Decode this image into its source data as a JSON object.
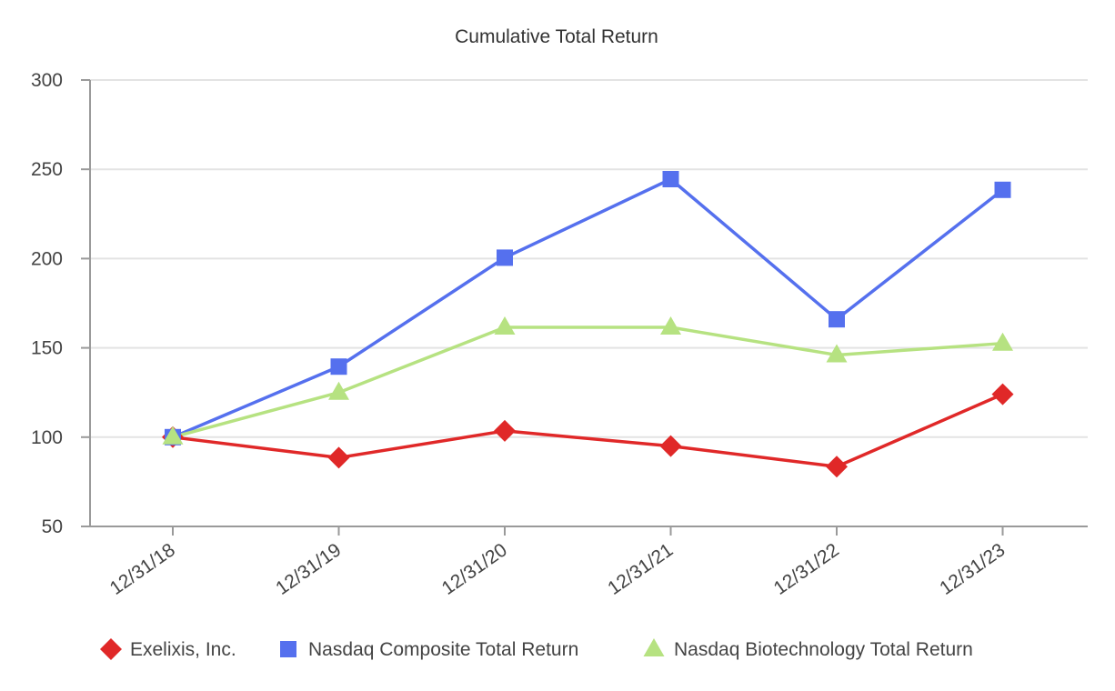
{
  "chart_data": {
    "type": "line",
    "title": "Cumulative Total  Return",
    "xlabel": "",
    "ylabel": "",
    "categories": [
      "12/31/18",
      "12/31/19",
      "12/31/20",
      "12/31/21",
      "12/31/22",
      "12/31/23"
    ],
    "ylim": [
      50,
      300
    ],
    "yticks": [
      50,
      100,
      150,
      200,
      250,
      300
    ],
    "grid": true,
    "legend_position": "bottom",
    "series": [
      {
        "name": "Exelixis, Inc.",
        "color": "#e02828",
        "marker": "diamond",
        "values": [
          100,
          88.5,
          103.5,
          95,
          83.5,
          124
        ]
      },
      {
        "name": "Nasdaq Composite Total Return",
        "color": "#5570ee",
        "marker": "square",
        "values": [
          100,
          139.5,
          200.5,
          244.5,
          166,
          238.5
        ]
      },
      {
        "name": "Nasdaq Biotechnology Total Return",
        "color": "#b6e281",
        "marker": "triangle",
        "values": [
          100,
          125,
          161.5,
          161.5,
          146,
          152.5
        ]
      }
    ]
  }
}
